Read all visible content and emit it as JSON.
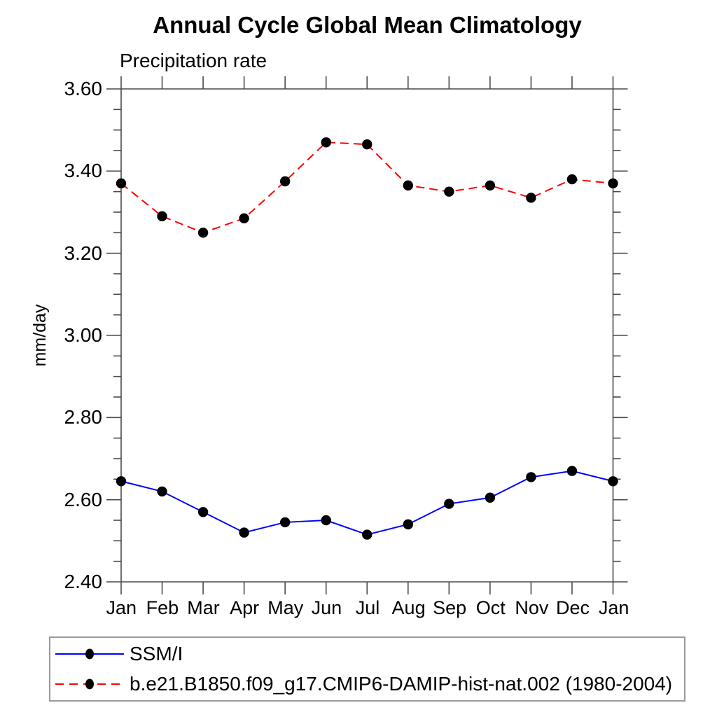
{
  "chart_data": {
    "type": "line",
    "title": "Annual Cycle Global Mean Climatology",
    "subtitle": "Precipitation rate",
    "ylabel": "mm/day",
    "xlabel": "",
    "categories": [
      "Jan",
      "Feb",
      "Mar",
      "Apr",
      "May",
      "Jun",
      "Jul",
      "Aug",
      "Sep",
      "Oct",
      "Nov",
      "Dec",
      "Jan"
    ],
    "ylim": [
      2.4,
      3.6
    ],
    "y_major_step": 0.2,
    "y_minor_step": 0.05,
    "y_tick_labels": [
      "3.60",
      "3.40",
      "3.20",
      "3.00",
      "2.80",
      "2.60",
      "2.40"
    ],
    "grid": false,
    "legend_position": "bottom",
    "marker_color": "#000000",
    "axis_color": "#4a4a4a",
    "series": [
      {
        "name": "SSM/I",
        "color": "#0000ff",
        "style": "solid",
        "values": [
          2.645,
          2.62,
          2.57,
          2.52,
          2.545,
          2.55,
          2.515,
          2.54,
          2.59,
          2.605,
          2.655,
          2.67,
          2.645
        ]
      },
      {
        "name": "b.e21.B1850.f09_g17.CMIP6-DAMIP-hist-nat.002 (1980-2004)",
        "color": "#ff0000",
        "style": "dashed",
        "values": [
          3.37,
          3.29,
          3.25,
          3.285,
          3.375,
          3.47,
          3.465,
          3.365,
          3.35,
          3.365,
          3.335,
          3.38,
          3.37
        ]
      }
    ]
  }
}
